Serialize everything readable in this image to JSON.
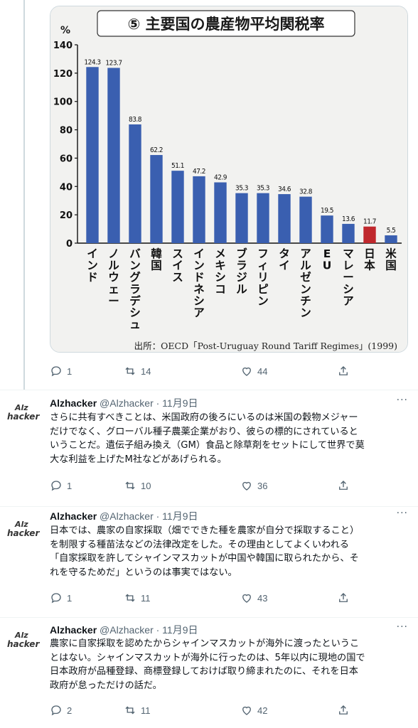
{
  "chart_data": {
    "type": "bar",
    "title": "⑤ 主要国の農産物平均関税率",
    "ylabel": "%",
    "ylim": [
      0,
      140
    ],
    "yticks": [
      0,
      20,
      40,
      60,
      80,
      100,
      120,
      140
    ],
    "categories": [
      "インド",
      "ノルウェー",
      "バングラデシュ",
      "韓国",
      "スイス",
      "インドネシア",
      "メキシコ",
      "ブラジル",
      "フィリピン",
      "タイ",
      "アルゼンチン",
      "EU",
      "マレーシア",
      "日本",
      "米国"
    ],
    "values": [
      124.3,
      123.7,
      83.8,
      62.2,
      51.1,
      47.2,
      42.9,
      35.3,
      35.3,
      34.6,
      32.8,
      19.5,
      13.6,
      11.7,
      5.5
    ],
    "value_labels": [
      "124.3",
      "123.7",
      "83.8",
      "62.2",
      "51.1",
      "47.2",
      "42.9",
      "35.3",
      "35.3",
      "34.6",
      "32.8",
      "19.5",
      "13.6",
      "11.7",
      "5.5"
    ],
    "bar_color": "#3a5fb0",
    "highlight_color": "#c0282d",
    "highlight_index": 13,
    "source": "出所：OECD「Post-Uruguay Round Tariff Regimes」(1999)",
    "grid": false
  },
  "first_tweet": {
    "reply_count": "1",
    "retweet_count": "14",
    "like_count": "44"
  },
  "tweets": [
    {
      "name": "Alzhacker",
      "handle_date": "@Alzhacker · 11月9日",
      "avatar_top": "Alz",
      "avatar_bottom": "hacker",
      "more": "···",
      "lines": [
        "さらに共有すべきことは、米国政府の後ろにいるのは米国の穀物メジャー",
        "だけでなく、グローバル種子農薬企業がおり、彼らの標的にされていると",
        "いうことだ。遺伝子組み換え（GM）食品と除草剤をセットにして世界で莫",
        "大な利益を上げたM社などがあげられる。"
      ],
      "reply_count": "1",
      "retweet_count": "10",
      "like_count": "36"
    },
    {
      "name": "Alzhacker",
      "handle_date": "@Alzhacker · 11月9日",
      "avatar_top": "Alz",
      "avatar_bottom": "hacker",
      "more": "···",
      "lines": [
        "日本では、農家の自家採取（畑でできた種を農家が自分で採取すること）",
        "を制限する種苗法などの法律改定をした。その理由としてよくいわれる",
        "「自家採取を許してシャインマスカットが中国や韓国に取られたから、そ",
        "れを守るためだ」というのは事実ではない。"
      ],
      "reply_count": "1",
      "retweet_count": "11",
      "like_count": "43"
    },
    {
      "name": "Alzhacker",
      "handle_date": "@Alzhacker · 11月9日",
      "avatar_top": "Alz",
      "avatar_bottom": "hacker",
      "more": "···",
      "lines": [
        "農家に自家採取を認めたからシャインマスカットが海外に渡ったというこ",
        "とはない。シャインマスカットが海外に行ったのは、5年以内に現地の国で",
        "日本政府が品種登録、商標登録しておけば取り締まれたのに、それを日本",
        "政府が怠っただけの話だ。"
      ],
      "reply_count": "2",
      "retweet_count": "11",
      "like_count": "42"
    }
  ]
}
